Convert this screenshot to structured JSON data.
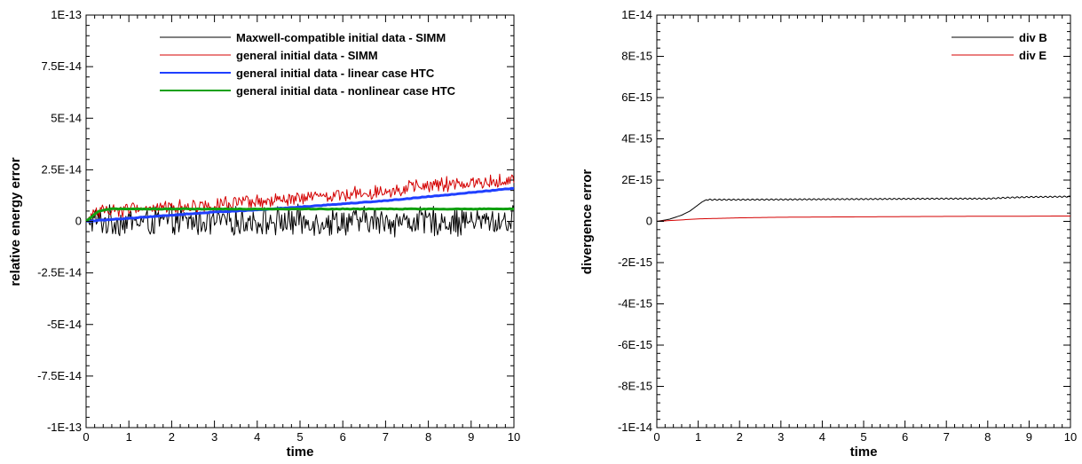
{
  "chart_data": [
    {
      "type": "line",
      "title": "",
      "xlabel": "time",
      "ylabel": "relative energy error",
      "xlim": [
        0,
        10
      ],
      "ylim": [
        -1e-13,
        1e-13
      ],
      "x_ticks": [
        0,
        1,
        2,
        3,
        4,
        5,
        6,
        7,
        8,
        9,
        10
      ],
      "x_tick_labels": [
        "0",
        "1",
        "2",
        "3",
        "4",
        "5",
        "6",
        "7",
        "8",
        "9",
        "10"
      ],
      "y_ticks": [
        -1e-13,
        -7.5e-14,
        -5e-14,
        -2.5e-14,
        0,
        2.5e-14,
        5e-14,
        7.5e-14,
        1e-13
      ],
      "y_tick_labels": [
        "-1E-13",
        "-7.5E-14",
        "-5E-14",
        "-2.5E-14",
        "0",
        "2.5E-14",
        "5E-14",
        "7.5E-14",
        "1E-13"
      ],
      "grid": false,
      "legend_position": "top-right",
      "series": [
        {
          "name": "Maxwell-compatible initial data - SIMM",
          "color": "#000000",
          "style": "noisy",
          "x": [
            0,
            0.5,
            1,
            2,
            3,
            4,
            5,
            6,
            7,
            8,
            9,
            10
          ],
          "values": [
            0,
            0,
            0,
            0,
            0,
            0,
            0,
            0,
            0,
            0,
            0,
            0
          ],
          "noise_amplitude": 6e-15
        },
        {
          "name": "general initial data - SIMM",
          "color": "#d40000",
          "style": "noisy",
          "x": [
            0,
            0.2,
            1,
            2,
            3,
            4,
            5,
            6,
            7,
            8,
            9,
            10
          ],
          "values": [
            0,
            5e-15,
            6e-15,
            7e-15,
            8e-15,
            9e-15,
            1.1e-14,
            1.3e-14,
            1.5e-14,
            1.7e-14,
            1.85e-14,
            2e-14
          ],
          "noise_amplitude": 3e-15
        },
        {
          "name": "general initial data - linear case HTC",
          "color": "#1f3fff",
          "style": "thick",
          "x": [
            0,
            1,
            2,
            3,
            4,
            5,
            6,
            7,
            8,
            9,
            10
          ],
          "values": [
            0,
            1.5e-15,
            3e-15,
            4.5e-15,
            5.5e-15,
            7e-15,
            8.5e-15,
            1e-14,
            1.2e-14,
            1.4e-14,
            1.6e-14
          ]
        },
        {
          "name": "general initial data - nonlinear case HTC",
          "color": "#10a010",
          "style": "thick",
          "x": [
            0,
            0.3,
            0.6,
            1,
            2,
            3,
            4,
            5,
            6,
            7,
            8,
            9,
            10
          ],
          "values": [
            0,
            5e-15,
            6e-15,
            6e-15,
            6e-15,
            6e-15,
            6e-15,
            6e-15,
            6e-15,
            6e-15,
            6e-15,
            6e-15,
            6e-15
          ]
        }
      ]
    },
    {
      "type": "line",
      "title": "",
      "xlabel": "time",
      "ylabel": "divergence error",
      "xlim": [
        0,
        10
      ],
      "ylim": [
        -1e-14,
        1e-14
      ],
      "x_ticks": [
        0,
        1,
        2,
        3,
        4,
        5,
        6,
        7,
        8,
        9,
        10
      ],
      "x_tick_labels": [
        "0",
        "1",
        "2",
        "3",
        "4",
        "5",
        "6",
        "7",
        "8",
        "9",
        "10"
      ],
      "y_ticks": [
        -1e-14,
        -8e-15,
        -6e-15,
        -4e-15,
        -2e-15,
        0,
        2e-15,
        4e-15,
        6e-15,
        8e-15,
        1e-14
      ],
      "y_tick_labels": [
        "-1E-14",
        "-8E-15",
        "-6E-15",
        "-4E-15",
        "-2E-15",
        "0",
        "2E-15",
        "4E-15",
        "6E-15",
        "8E-15",
        "1E-14"
      ],
      "grid": false,
      "legend_position": "top-right",
      "series": [
        {
          "name": "div B",
          "color": "#000000",
          "style": "ripple",
          "x": [
            0,
            0.3,
            0.6,
            0.8,
            1.0,
            1.1,
            1.2,
            1.5,
            2,
            3,
            4,
            5,
            6,
            7,
            8,
            8.5,
            9,
            10
          ],
          "values": [
            0,
            1e-16,
            3e-16,
            5e-16,
            8e-16,
            9.5e-16,
            1.05e-15,
            1.05e-15,
            1.05e-15,
            1.06e-15,
            1.07e-15,
            1.08e-15,
            1.09e-15,
            1.1e-15,
            1.1e-15,
            1.15e-15,
            1.18e-15,
            1.2e-15
          ],
          "noise_amplitude": 3e-17
        },
        {
          "name": "div E",
          "color": "#d40000",
          "style": "smooth",
          "x": [
            0,
            1,
            2,
            3,
            4,
            5,
            6,
            7,
            8,
            9,
            10
          ],
          "values": [
            0,
            1.2e-16,
            1.7e-16,
            2e-16,
            2.1e-16,
            2.2e-16,
            2.3e-16,
            2.4e-16,
            2.5e-16,
            2.5e-16,
            2.6e-16
          ]
        }
      ]
    }
  ]
}
